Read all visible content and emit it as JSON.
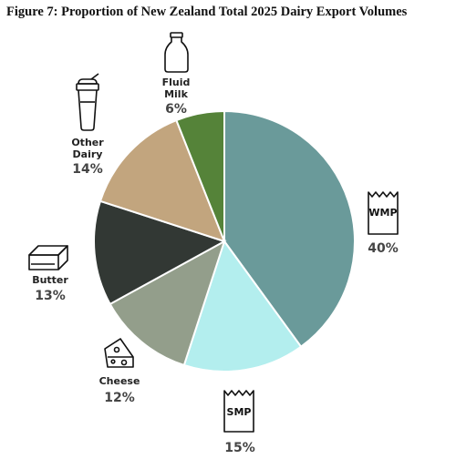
{
  "title": "Figure 7: Proportion of New Zealand Total 2025 Dairy Export Volumes",
  "chart_data": {
    "type": "pie",
    "title": "Figure 7: Proportion of New Zealand Total 2025 Dairy Export Volumes",
    "start_angle_deg": 0,
    "direction": "clockwise",
    "slices": [
      {
        "label": "WMP",
        "value": 40,
        "value_label": "40%",
        "color": "#6a9a9a",
        "icon": "bag-icon"
      },
      {
        "label": "SMP",
        "value": 15,
        "value_label": "15%",
        "color": "#b3eeee",
        "icon": "bag-icon"
      },
      {
        "label": "Cheese",
        "value": 12,
        "value_label": "12%",
        "color": "#939e8b",
        "icon": "cheese-icon"
      },
      {
        "label": "Butter",
        "value": 13,
        "value_label": "13%",
        "color": "#323834",
        "icon": "butter-icon"
      },
      {
        "label": "Other Dairy",
        "value": 14,
        "value_label": "14%",
        "color": "#c2a57e",
        "icon": "shaker-icon"
      },
      {
        "label": "Fluid Milk",
        "value": 6,
        "value_label": "6%",
        "color": "#558339",
        "icon": "milk-bottle-icon"
      }
    ]
  }
}
